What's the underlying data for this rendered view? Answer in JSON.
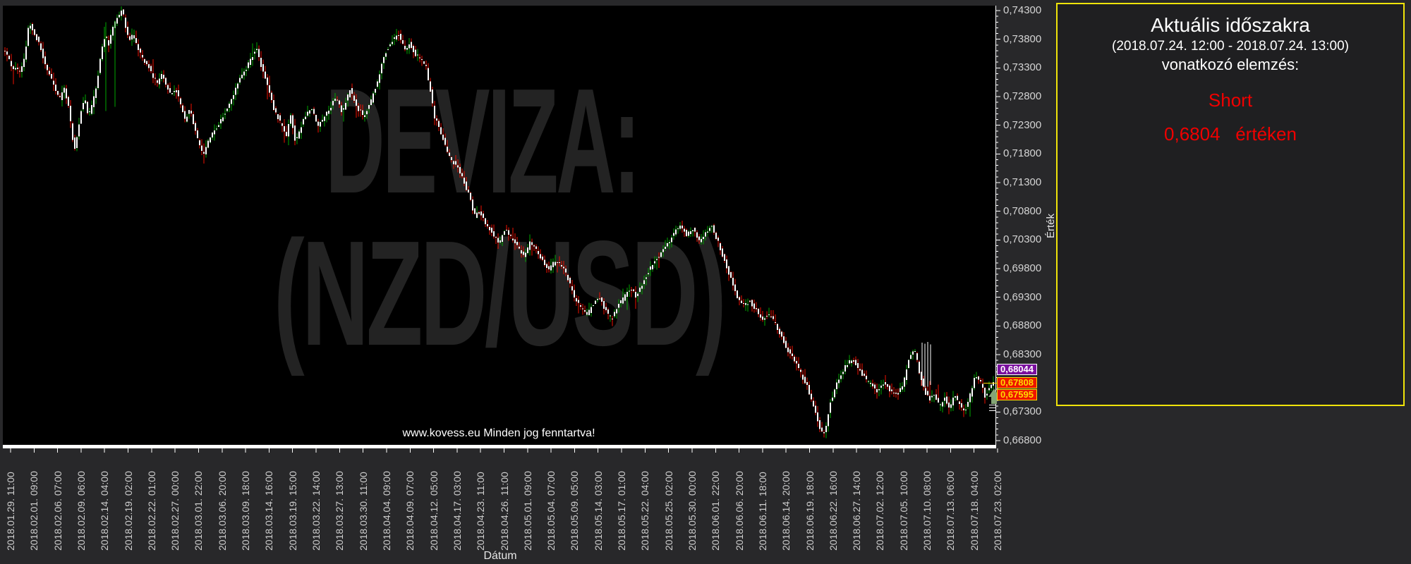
{
  "watermark": {
    "line1": "DEVIZA:",
    "line2": "(NZD/USD)",
    "color": "#232323"
  },
  "copyright": "www.kovess.eu Minden jog fenntartva!",
  "axes": {
    "x_title": "Dátum",
    "y_title": "Érték"
  },
  "panel": {
    "title": "Aktuális időszakra",
    "period": "(2018.07.24. 12:00 - 2018.07.24. 13:00)",
    "subtitle": "vonatkozó elemzés:",
    "signal": "Short",
    "value_line": "0,6804   értéken",
    "border_color": "#f0e40a",
    "signal_color": "#f00000"
  },
  "chart_data": {
    "type": "candlestick",
    "instrument": "NZD/USD",
    "interval": "1 hour",
    "plot_bg": "#000000",
    "outer_bg": "#28282a",
    "grid": false,
    "y_range": [
      0.668,
      0.743
    ],
    "y_tick_step": 0.005,
    "y_minor_step": 0.001,
    "colors": {
      "up": "#00a800",
      "down": "#ef0f00",
      "body": "#ffffff",
      "axis": "#ffffff",
      "tick_text": "#d4d4d4"
    },
    "y_tick_labels": [
      {
        "text": "0,74300",
        "price": 0.743
      },
      {
        "text": "0,73800",
        "price": 0.738
      },
      {
        "text": "0,73300",
        "price": 0.733
      },
      {
        "text": "0,72800",
        "price": 0.728
      },
      {
        "text": "0,72300",
        "price": 0.723
      },
      {
        "text": "0,71800",
        "price": 0.718
      },
      {
        "text": "0,71300",
        "price": 0.713
      },
      {
        "text": "0,70800",
        "price": 0.708
      },
      {
        "text": "0,70300",
        "price": 0.703
      },
      {
        "text": "0,69800",
        "price": 0.698
      },
      {
        "text": "0,69300",
        "price": 0.693
      },
      {
        "text": "0,68800",
        "price": 0.688
      },
      {
        "text": "0,68300",
        "price": 0.683
      },
      {
        "text": "0,67300",
        "price": 0.673
      },
      {
        "text": "0,66800",
        "price": 0.668
      }
    ],
    "x_tick_labels": [
      "2018.01.29. 11:00",
      "2018.02.01. 09:00",
      "2018.02.06. 07:00",
      "2018.02.09. 06:00",
      "2018.02.14. 04:00",
      "2018.02.19. 02:00",
      "2018.02.22. 01:00",
      "2018.02.27. 00:00",
      "2018.03.01. 22:00",
      "2018.03.06. 20:00",
      "2018.03.09. 18:00",
      "2018.03.14. 16:00",
      "2018.03.19. 15:00",
      "2018.03.22. 14:00",
      "2018.03.27. 13:00",
      "2018.03.30. 11:00",
      "2018.04.04. 09:00",
      "2018.04.09. 07:00",
      "2018.04.12. 05:00",
      "2018.04.17. 03:00",
      "2018.04.23. 11:00",
      "2018.04.26. 11:00",
      "2018.05.01. 09:00",
      "2018.05.04. 07:00",
      "2018.05.09. 05:00",
      "2018.05.14. 03:00",
      "2018.05.17. 01:00",
      "2018.05.22. 04:00",
      "2018.05.25. 02:00",
      "2018.05.30. 00:00",
      "2018.06.01. 22:00",
      "2018.06.06. 20:00",
      "2018.06.11. 18:00",
      "2018.06.14. 20:00",
      "2018.06.19. 18:00",
      "2018.06.22. 16:00",
      "2018.06.27. 14:00",
      "2018.07.02. 12:00",
      "2018.07.05. 10:00",
      "2018.07.10. 08:00",
      "2018.07.13. 06:00",
      "2018.07.18. 04:00",
      "2018.07.23. 02:00"
    ],
    "current_prices": [
      {
        "text": "0,68044",
        "price": 0.68044,
        "bg": "#7a0f9e",
        "border": "#ffffff",
        "color": "#ffffff"
      },
      {
        "text": "0,67808",
        "price": 0.67808,
        "bg": "#ee1500",
        "border": "#ffd800",
        "color": "#ffd800"
      },
      {
        "text": "0,67595",
        "price": 0.67595,
        "bg": "#ee1500",
        "border": "#ffd800",
        "color": "#ffd800"
      }
    ],
    "price_path_anchors": [
      [
        0,
        0.7368
      ],
      [
        10,
        0.7355
      ],
      [
        20,
        0.733
      ],
      [
        30,
        0.7322
      ],
      [
        38,
        0.7355
      ],
      [
        43,
        0.7412
      ],
      [
        50,
        0.739
      ],
      [
        57,
        0.7375
      ],
      [
        65,
        0.7338
      ],
      [
        72,
        0.732
      ],
      [
        80,
        0.7295
      ],
      [
        87,
        0.7276
      ],
      [
        93,
        0.7295
      ],
      [
        99,
        0.7264
      ],
      [
        103,
        0.7227
      ],
      [
        107,
        0.7184
      ],
      [
        112,
        0.7215
      ],
      [
        117,
        0.7258
      ],
      [
        122,
        0.7276
      ],
      [
        127,
        0.7245
      ],
      [
        132,
        0.7264
      ],
      [
        139,
        0.7301
      ],
      [
        145,
        0.7356
      ],
      [
        151,
        0.7387
      ],
      [
        156,
        0.7369
      ],
      [
        161,
        0.74
      ],
      [
        169,
        0.7418
      ],
      [
        175,
        0.7434
      ],
      [
        181,
        0.7393
      ],
      [
        186,
        0.7381
      ],
      [
        191,
        0.7387
      ],
      [
        198,
        0.7362
      ],
      [
        206,
        0.7344
      ],
      [
        213,
        0.7331
      ],
      [
        219,
        0.7313
      ],
      [
        226,
        0.7301
      ],
      [
        231,
        0.7319
      ],
      [
        238,
        0.7301
      ],
      [
        244,
        0.7282
      ],
      [
        251,
        0.7295
      ],
      [
        258,
        0.7264
      ],
      [
        264,
        0.7239
      ],
      [
        271,
        0.7257
      ],
      [
        278,
        0.7227
      ],
      [
        284,
        0.7196
      ],
      [
        291,
        0.7179
      ],
      [
        297,
        0.7202
      ],
      [
        311,
        0.723
      ],
      [
        325,
        0.7262
      ],
      [
        338,
        0.73
      ],
      [
        356,
        0.7342
      ],
      [
        365,
        0.7365
      ],
      [
        371,
        0.7339
      ],
      [
        377,
        0.7315
      ],
      [
        390,
        0.726
      ],
      [
        401,
        0.723
      ],
      [
        408,
        0.7213
      ],
      [
        414,
        0.725
      ],
      [
        421,
        0.7198
      ],
      [
        431,
        0.7237
      ],
      [
        443,
        0.7262
      ],
      [
        452,
        0.7229
      ],
      [
        466,
        0.7253
      ],
      [
        478,
        0.7278
      ],
      [
        487,
        0.7253
      ],
      [
        498,
        0.7292
      ],
      [
        507,
        0.7264
      ],
      [
        517,
        0.7245
      ],
      [
        527,
        0.7268
      ],
      [
        537,
        0.7307
      ],
      [
        547,
        0.7355
      ],
      [
        558,
        0.7378
      ],
      [
        568,
        0.7389
      ],
      [
        575,
        0.7362
      ],
      [
        583,
        0.7373
      ],
      [
        590,
        0.7355
      ],
      [
        598,
        0.7347
      ],
      [
        606,
        0.733
      ],
      [
        612,
        0.729
      ],
      [
        618,
        0.7245
      ],
      [
        628,
        0.7213
      ],
      [
        639,
        0.7174
      ],
      [
        650,
        0.7158
      ],
      [
        658,
        0.7135
      ],
      [
        666,
        0.7111
      ],
      [
        675,
        0.7072
      ],
      [
        682,
        0.708
      ],
      [
        690,
        0.706
      ],
      [
        700,
        0.7041
      ],
      [
        710,
        0.7025
      ],
      [
        718,
        0.7049
      ],
      [
        727,
        0.7033
      ],
      [
        736,
        0.7017
      ],
      [
        745,
        0.7001
      ],
      [
        753,
        0.7025
      ],
      [
        762,
        0.7012
      ],
      [
        771,
        0.6994
      ],
      [
        780,
        0.6978
      ],
      [
        789,
        0.6994
      ],
      [
        798,
        0.6986
      ],
      [
        807,
        0.6962
      ],
      [
        816,
        0.6931
      ],
      [
        824,
        0.6915
      ],
      [
        833,
        0.6899
      ],
      [
        842,
        0.6915
      ],
      [
        851,
        0.6931
      ],
      [
        860,
        0.6907
      ],
      [
        869,
        0.6892
      ],
      [
        878,
        0.6915
      ],
      [
        887,
        0.6931
      ],
      [
        895,
        0.6946
      ],
      [
        904,
        0.6931
      ],
      [
        913,
        0.6954
      ],
      [
        922,
        0.6978
      ],
      [
        931,
        0.6994
      ],
      [
        940,
        0.7009
      ],
      [
        949,
        0.7025
      ],
      [
        958,
        0.7044
      ],
      [
        966,
        0.7057
      ],
      [
        975,
        0.7038
      ],
      [
        984,
        0.7049
      ],
      [
        993,
        0.7028
      ],
      [
        1002,
        0.7041
      ],
      [
        1011,
        0.7054
      ],
      [
        1020,
        0.7025
      ],
      [
        1029,
        0.6994
      ],
      [
        1038,
        0.6962
      ],
      [
        1047,
        0.6931
      ],
      [
        1056,
        0.6915
      ],
      [
        1065,
        0.6923
      ],
      [
        1074,
        0.6907
      ],
      [
        1083,
        0.6892
      ],
      [
        1092,
        0.6899
      ],
      [
        1101,
        0.6884
      ],
      [
        1110,
        0.686
      ],
      [
        1119,
        0.6837
      ],
      [
        1128,
        0.6821
      ],
      [
        1137,
        0.6797
      ],
      [
        1146,
        0.6774
      ],
      [
        1155,
        0.6742
      ],
      [
        1164,
        0.6703
      ],
      [
        1171,
        0.6692
      ],
      [
        1178,
        0.6742
      ],
      [
        1186,
        0.6774
      ],
      [
        1194,
        0.6797
      ],
      [
        1202,
        0.6813
      ],
      [
        1210,
        0.6824
      ],
      [
        1219,
        0.6805
      ],
      [
        1228,
        0.6789
      ],
      [
        1237,
        0.6777
      ],
      [
        1246,
        0.6766
      ],
      [
        1255,
        0.6782
      ],
      [
        1264,
        0.6766
      ],
      [
        1273,
        0.676
      ],
      [
        1282,
        0.6778
      ],
      [
        1291,
        0.6828
      ],
      [
        1298,
        0.684
      ],
      [
        1305,
        0.68
      ],
      [
        1312,
        0.6768
      ],
      [
        1319,
        0.6752
      ],
      [
        1326,
        0.676
      ],
      [
        1334,
        0.674
      ],
      [
        1341,
        0.6756
      ],
      [
        1348,
        0.6734
      ],
      [
        1355,
        0.676
      ],
      [
        1362,
        0.6742
      ],
      [
        1369,
        0.6729
      ],
      [
        1377,
        0.676
      ],
      [
        1385,
        0.6795
      ],
      [
        1392,
        0.678
      ],
      [
        1398,
        0.6758
      ],
      [
        1404,
        0.6772
      ],
      [
        1408,
        0.6781
      ]
    ],
    "spikes": [
      {
        "x": 150,
        "from": 0.741,
        "to": 0.7255,
        "color": "#00a800"
      },
      {
        "x": 163,
        "from": 0.7412,
        "to": 0.7262,
        "color": "#00a800"
      },
      {
        "x": 1307,
        "from": 0.6851,
        "to": 0.6776,
        "color": "#ffffff"
      },
      {
        "x": 1311,
        "from": 0.6849,
        "to": 0.6773,
        "color": "#ffffff"
      },
      {
        "x": 1315,
        "from": 0.6852,
        "to": 0.6774,
        "color": "#ffffff"
      },
      {
        "x": 1319,
        "from": 0.6848,
        "to": 0.6777,
        "color": "#ffffff"
      }
    ],
    "arrow_marker": {
      "direction": "up",
      "tip_price": 0.6772,
      "color": "#84a575"
    }
  }
}
